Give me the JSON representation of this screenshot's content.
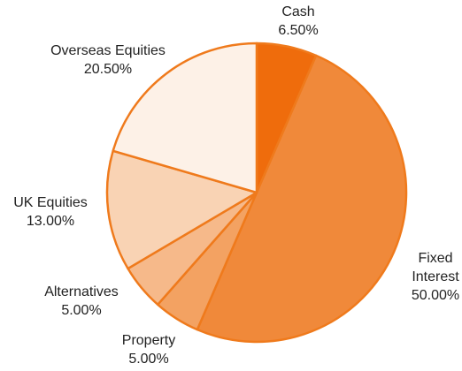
{
  "chart_data": {
    "type": "pie",
    "categories": [
      "Cash",
      "Fixed Interest",
      "Property",
      "Alternatives",
      "UK Equities",
      "Overseas Equities"
    ],
    "values": [
      6.5,
      50,
      5,
      5,
      13,
      20.5
    ],
    "value_labels": [
      "6.50%",
      "50.00%",
      "5.00%",
      "5.00%",
      "13.00%",
      "20.50%"
    ],
    "colors": [
      "#ef6c0c",
      "#f0893a",
      "#f3a262",
      "#f6b98a",
      "#f9d3b4",
      "#fdf1e7"
    ],
    "edge_color": "#ef7a1c"
  }
}
